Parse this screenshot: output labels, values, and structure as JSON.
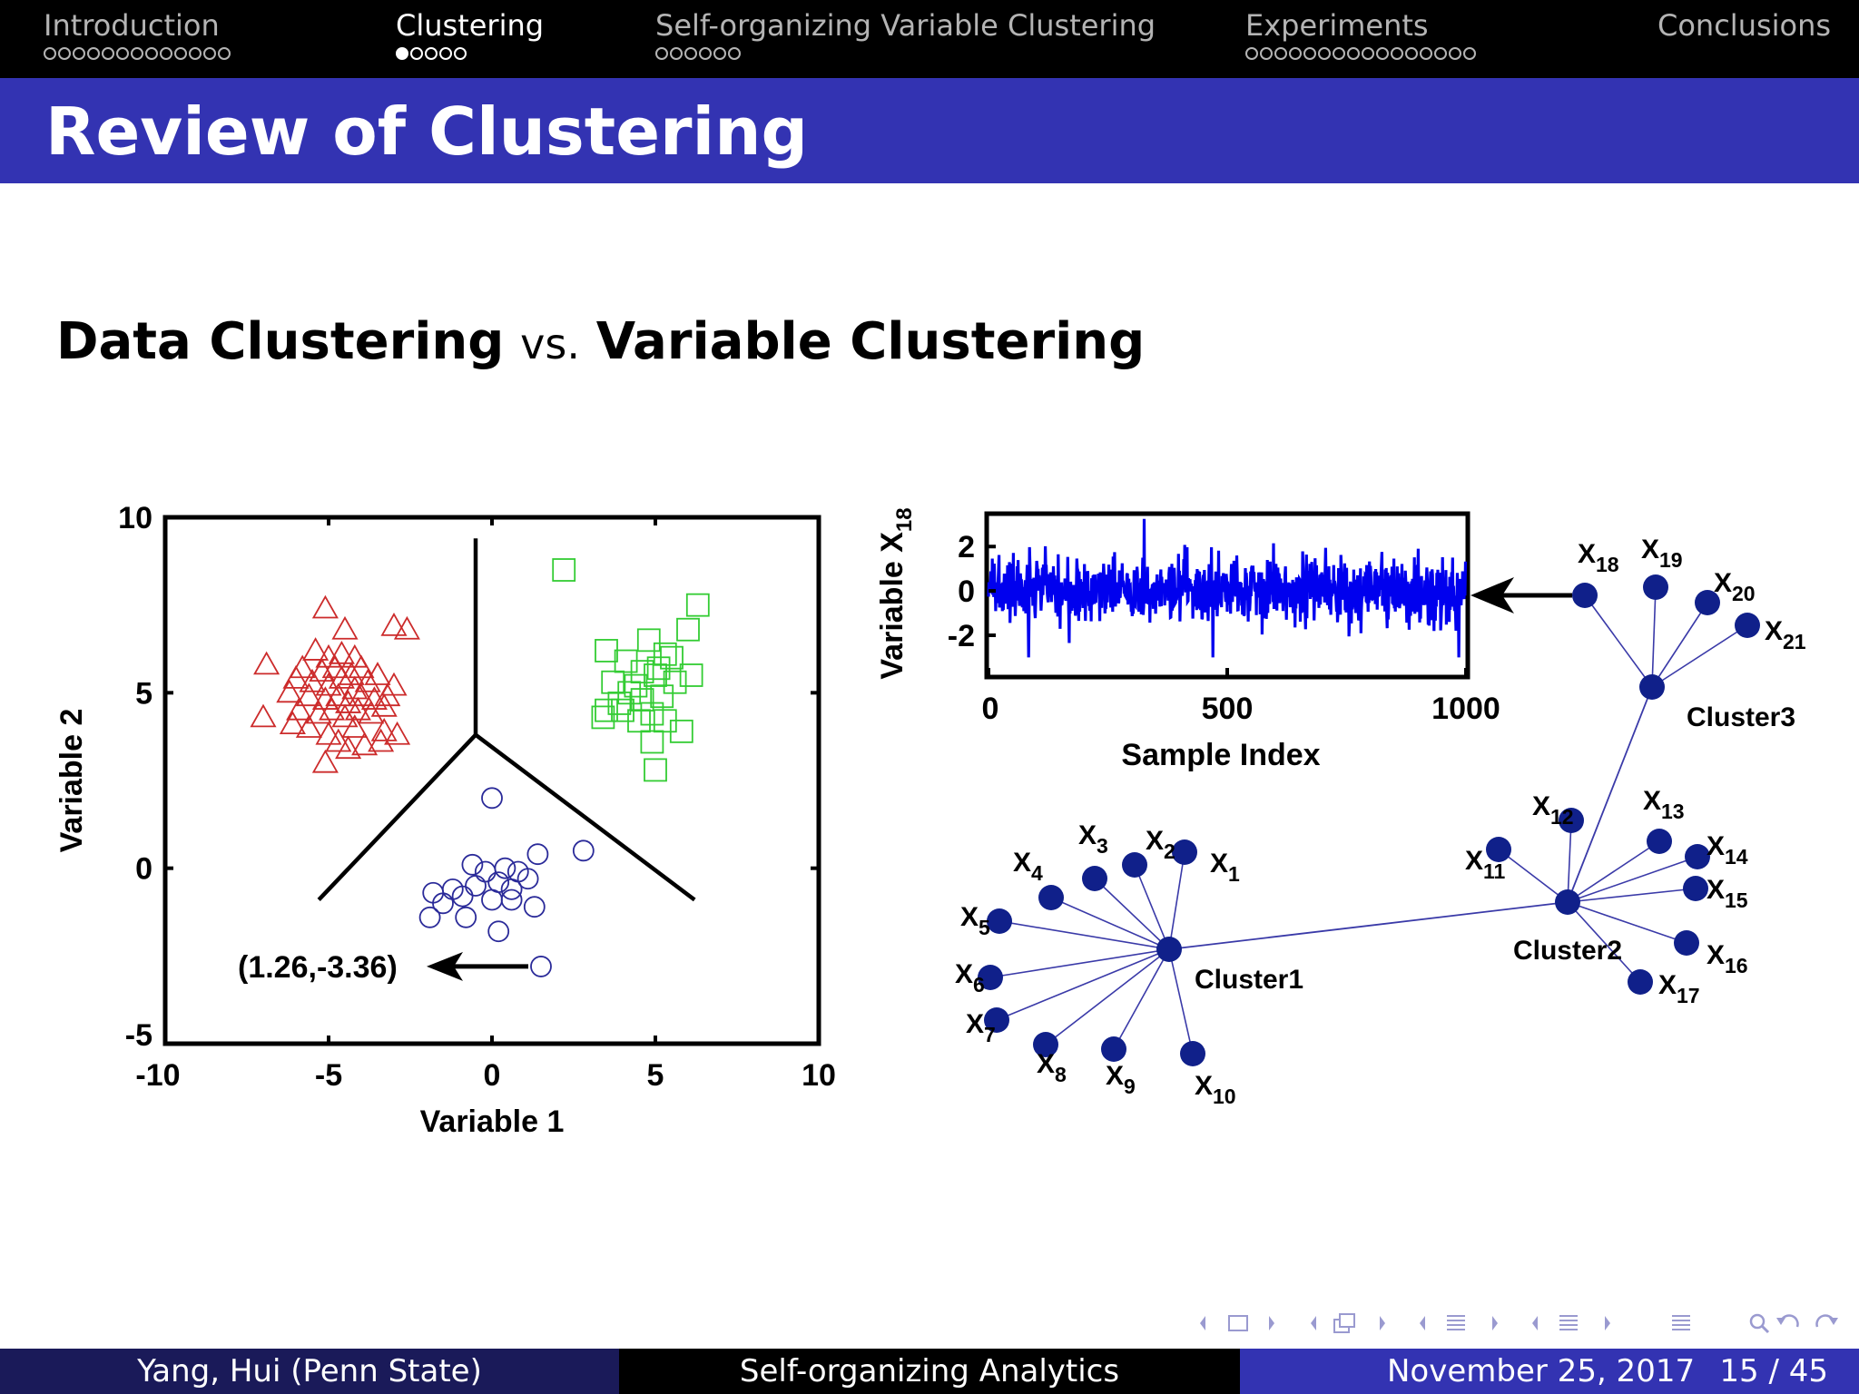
{
  "nav": {
    "sections": [
      {
        "title": "Introduction",
        "dots": 13,
        "filled": -1,
        "active": false
      },
      {
        "title": "Clustering",
        "dots": 5,
        "filled": 0,
        "active": true
      },
      {
        "title": "Self-organizing Variable Clustering",
        "dots": 6,
        "filled": -1,
        "active": false
      },
      {
        "title": "Experiments",
        "dots": 16,
        "filled": -1,
        "active": false
      },
      {
        "title": "Conclusions",
        "dots": 0,
        "filled": -1,
        "active": false
      }
    ]
  },
  "frame_title": "Review of Clustering",
  "heading": {
    "left": "Data Clustering",
    "vs": "vs.",
    "right": "Variable Clustering"
  },
  "chart_data": [
    {
      "type": "scatter",
      "xlabel": "Variable 1",
      "ylabel": "Variable 2",
      "xlim": [
        -10,
        10
      ],
      "ylim": [
        -5,
        10
      ],
      "xticks": [
        "-10",
        "-5",
        "0",
        "5",
        "10"
      ],
      "yticks": [
        "-5",
        "0",
        "5",
        "10"
      ],
      "annotation": "(1.26,-3.36)",
      "annotated_point": [
        1.5,
        -2.8
      ],
      "boundary": {
        "center": [
          -0.5,
          3.8
        ],
        "top": [
          -0.5,
          9.4
        ],
        "left": [
          -5.3,
          -0.9
        ],
        "right": [
          6.2,
          -0.9
        ]
      },
      "series": [
        {
          "marker": "triangle",
          "color": "#cc2b2b",
          "points": [
            [
              -5.1,
              7.4
            ],
            [
              -4.5,
              6.8
            ],
            [
              -5.4,
              6.2
            ],
            [
              -5.0,
              6.0
            ],
            [
              -4.6,
              6.1
            ],
            [
              -4.2,
              6.0
            ],
            [
              -5.8,
              5.7
            ],
            [
              -5.2,
              5.6
            ],
            [
              -4.8,
              5.7
            ],
            [
              -4.3,
              5.5
            ],
            [
              -4.0,
              5.7
            ],
            [
              -6.9,
              5.8
            ],
            [
              -6.0,
              5.4
            ],
            [
              -5.5,
              5.3
            ],
            [
              -5.0,
              5.2
            ],
            [
              -4.6,
              5.4
            ],
            [
              -4.2,
              5.1
            ],
            [
              -3.8,
              5.3
            ],
            [
              -3.5,
              5.5
            ],
            [
              -3.0,
              5.2
            ],
            [
              -6.2,
              5.0
            ],
            [
              -5.6,
              4.9
            ],
            [
              -5.1,
              4.8
            ],
            [
              -4.7,
              4.9
            ],
            [
              -4.4,
              4.7
            ],
            [
              -4.0,
              4.9
            ],
            [
              -3.6,
              4.8
            ],
            [
              -3.2,
              4.9
            ],
            [
              -5.9,
              4.5
            ],
            [
              -5.3,
              4.4
            ],
            [
              -4.9,
              4.5
            ],
            [
              -4.5,
              4.3
            ],
            [
              -4.1,
              4.5
            ],
            [
              -3.7,
              4.4
            ],
            [
              -3.3,
              4.6
            ],
            [
              -7.0,
              4.3
            ],
            [
              -6.1,
              4.1
            ],
            [
              -5.6,
              4.0
            ],
            [
              -4.2,
              4.0
            ],
            [
              -3.3,
              3.9
            ],
            [
              -2.9,
              3.8
            ],
            [
              -5.0,
              3.8
            ],
            [
              -4.7,
              3.6
            ],
            [
              -3.9,
              3.5
            ],
            [
              -3.4,
              3.6
            ],
            [
              -4.4,
              3.4
            ],
            [
              -5.1,
              3.0
            ],
            [
              -3.0,
              6.9
            ],
            [
              -2.6,
              6.8
            ]
          ]
        },
        {
          "marker": "square",
          "color": "#33cc33",
          "points": [
            [
              2.2,
              8.5
            ],
            [
              6.3,
              7.5
            ],
            [
              6.0,
              6.8
            ],
            [
              4.8,
              6.5
            ],
            [
              3.5,
              6.2
            ],
            [
              5.3,
              6.1
            ],
            [
              4.1,
              5.9
            ],
            [
              5.5,
              6.0
            ],
            [
              4.6,
              5.6
            ],
            [
              5.0,
              5.5
            ],
            [
              5.6,
              5.3
            ],
            [
              6.1,
              5.5
            ],
            [
              3.7,
              5.3
            ],
            [
              4.2,
              5.0
            ],
            [
              5.2,
              4.9
            ],
            [
              3.9,
              4.7
            ],
            [
              4.6,
              4.8
            ],
            [
              3.5,
              4.5
            ],
            [
              4.9,
              4.4
            ],
            [
              3.4,
              4.3
            ],
            [
              4.5,
              4.2
            ],
            [
              5.3,
              4.2
            ],
            [
              5.8,
              3.9
            ],
            [
              4.9,
              3.6
            ],
            [
              5.0,
              2.8
            ],
            [
              4.4,
              5.2
            ],
            [
              5.1,
              5.7
            ],
            [
              4.0,
              4.5
            ]
          ]
        },
        {
          "marker": "circle",
          "color": "#2a2a99",
          "points": [
            [
              0.0,
              2.0
            ],
            [
              1.4,
              0.4
            ],
            [
              2.8,
              0.5
            ],
            [
              -0.6,
              0.1
            ],
            [
              -0.2,
              -0.1
            ],
            [
              0.4,
              0.0
            ],
            [
              0.8,
              -0.1
            ],
            [
              1.1,
              -0.3
            ],
            [
              -1.8,
              -0.7
            ],
            [
              -1.2,
              -0.6
            ],
            [
              -0.5,
              -0.5
            ],
            [
              0.2,
              -0.4
            ],
            [
              0.6,
              -0.6
            ],
            [
              -1.5,
              -1.0
            ],
            [
              -0.9,
              -0.8
            ],
            [
              0.6,
              -0.9
            ],
            [
              1.3,
              -1.1
            ],
            [
              -1.9,
              -1.4
            ],
            [
              -0.8,
              -1.4
            ],
            [
              0.2,
              -1.8
            ],
            [
              0.0,
              -0.9
            ]
          ]
        }
      ]
    },
    {
      "type": "line",
      "xlabel": "Sample Index",
      "ylabel": "Variable X",
      "ylabel_sub": "18",
      "xlim": [
        0,
        1000
      ],
      "ylim": [
        -3.8,
        3.4
      ],
      "xticks": [
        "0",
        "500",
        "1000"
      ],
      "yticks": [
        "2",
        "0",
        "-2"
      ],
      "color": "#0000ee",
      "n_samples": 1000
    }
  ],
  "network": {
    "clusters": [
      {
        "id": "c1",
        "label": "Cluster1"
      },
      {
        "id": "c2",
        "label": "Cluster2"
      },
      {
        "id": "c3",
        "label": "Cluster3"
      }
    ],
    "variables": [
      {
        "id": "x1",
        "main": "X",
        "sub": "1",
        "cluster": "c1"
      },
      {
        "id": "x2",
        "main": "X",
        "sub": "2",
        "cluster": "c1"
      },
      {
        "id": "x3",
        "main": "X",
        "sub": "3",
        "cluster": "c1"
      },
      {
        "id": "x4",
        "main": "X",
        "sub": "4",
        "cluster": "c1"
      },
      {
        "id": "x5",
        "main": "X",
        "sub": "5",
        "cluster": "c1"
      },
      {
        "id": "x6",
        "main": "X",
        "sub": "6",
        "cluster": "c1"
      },
      {
        "id": "x7",
        "main": "X",
        "sub": "7",
        "cluster": "c1"
      },
      {
        "id": "x8",
        "main": "X",
        "sub": "8",
        "cluster": "c1"
      },
      {
        "id": "x9",
        "main": "X",
        "sub": "9",
        "cluster": "c1"
      },
      {
        "id": "x10",
        "main": "X",
        "sub": "10",
        "cluster": "c1"
      },
      {
        "id": "x11",
        "main": "X",
        "sub": "11",
        "cluster": "c2"
      },
      {
        "id": "x12",
        "main": "X",
        "sub": "12",
        "cluster": "c2"
      },
      {
        "id": "x13",
        "main": "X",
        "sub": "13",
        "cluster": "c2"
      },
      {
        "id": "x14",
        "main": "X",
        "sub": "14",
        "cluster": "c2"
      },
      {
        "id": "x15",
        "main": "X",
        "sub": "15",
        "cluster": "c2"
      },
      {
        "id": "x16",
        "main": "X",
        "sub": "16",
        "cluster": "c2"
      },
      {
        "id": "x17",
        "main": "X",
        "sub": "17",
        "cluster": "c2"
      },
      {
        "id": "x18",
        "main": "X",
        "sub": "18",
        "cluster": "c3"
      },
      {
        "id": "x19",
        "main": "X",
        "sub": "19",
        "cluster": "c3"
      },
      {
        "id": "x20",
        "main": "X",
        "sub": "20",
        "cluster": "c3"
      },
      {
        "id": "x21",
        "main": "X",
        "sub": "21",
        "cluster": "c3"
      }
    ],
    "links": [
      [
        "c1",
        "c2"
      ],
      [
        "c2",
        "c3"
      ]
    ],
    "node_color": "#10208a"
  },
  "footer": {
    "author": "Yang, Hui  (Penn State)",
    "title": "Self-organizing Analytics",
    "date": "November 25, 2017",
    "page": "15 / 45"
  },
  "colors": {
    "title_bar": "#3333b2",
    "nav_bar": "#000000",
    "footer_left": "#1a1a59",
    "footer_right": "#3333b2"
  },
  "beamer_nav_icons": [
    "arrow-left-icon",
    "frame-icon",
    "arrow-right-icon",
    "arrow-left-icon",
    "subsection-icon",
    "arrow-right-icon",
    "arrow-left-icon",
    "section-icon",
    "arrow-right-icon",
    "arrow-left-icon",
    "document-icon",
    "arrow-right-icon",
    "align-icon",
    "search-icon",
    "undo-icon",
    "redo-icon"
  ]
}
